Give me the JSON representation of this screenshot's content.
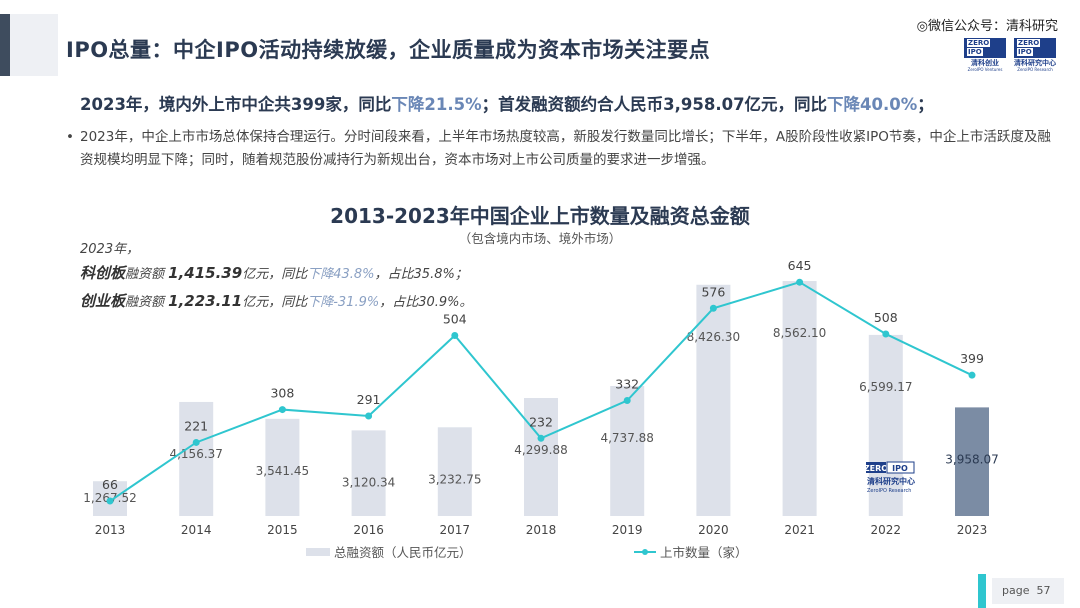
{
  "header": {
    "title": "IPO总量：中企IPO活动持续放缓，企业质量成为资本市场关注要点",
    "wechat": "微信公众号：清科研究",
    "logo1": {
      "top": "ZERO",
      "box": "IPO",
      "name": "清科创业",
      "en": "ZeroIPO Ventures"
    },
    "logo2": {
      "top": "ZERO",
      "box": "IPO",
      "name": "清科研究中心",
      "en": "ZeroIPO Research"
    }
  },
  "summary": {
    "part1": "2023年，境内外上市中企共399家，同比",
    "hl1": "下降21.5%",
    "part2": "；首发融资额约合人民币3,958.07亿元，同比",
    "hl2": "下降40.0%",
    "part3": "；"
  },
  "bullet": {
    "dot": "•",
    "text": "2023年，中企上市市场总体保持合理运行。分时间段来看，上半年市场热度较高，新股发行数量同比增长；下半年，A股阶段性收紧IPO节奏，中企上市活跃度及融资规模均明显下降；同时，随着规范股份减持行为新规出台，资本市场对上市公司质量的要求进一步增强。"
  },
  "notes": {
    "year": "2023年，",
    "kcb": {
      "name": "科创板",
      "label": "融资额 ",
      "amount": "1,415.39",
      "unit": "亿元",
      "yoy_prefix": "，同比",
      "yoy": "下降43.8%",
      "share": "，占比35.8%；"
    },
    "cyb": {
      "name": "创业板",
      "label": "融资额 ",
      "amount": "1,223.11",
      "unit": "亿元",
      "yoy_prefix": "，同比",
      "yoy": "下降-31.9%",
      "share": "，占比30.9%。"
    }
  },
  "watermark": {
    "top": "ZERO",
    "box": "IPO",
    "name": "清科研究中心",
    "en": "ZeroIPO Research"
  },
  "page": {
    "label": "page",
    "number": "57"
  },
  "colors": {
    "bar": "#dde1ea",
    "bar_highlight": "#7b8ca4",
    "line": "#2fc6cf",
    "title": "#2b3a52",
    "accent_text": "#6a87b6"
  },
  "chart_data": {
    "type": "bar",
    "title": "2013-2023年中国企业上市数量及融资总金额",
    "subtitle": "（包含境内市场、境外市场）",
    "categories": [
      "2013",
      "2014",
      "2015",
      "2016",
      "2017",
      "2018",
      "2019",
      "2020",
      "2021",
      "2022",
      "2023"
    ],
    "series": [
      {
        "name": "总融资额（人民币亿元）",
        "kind": "bar",
        "values": [
          1267.52,
          4156.37,
          3541.45,
          3120.34,
          3232.75,
          4299.88,
          4737.88,
          8426.3,
          8562.1,
          6599.17,
          3958.07
        ],
        "labels": [
          "1,267.52",
          "4,156.37",
          "3,541.45",
          "3,120.34",
          "3,232.75",
          "4,299.88",
          "4,737.88",
          "8,426.30",
          "8,562.10",
          "6,599.17",
          "3,958.07"
        ]
      },
      {
        "name": "上市数量（家）",
        "kind": "line",
        "values": [
          66,
          221,
          308,
          291,
          504,
          232,
          332,
          576,
          645,
          508,
          399
        ],
        "labels": [
          "66",
          "221",
          "308",
          "291",
          "504",
          "232",
          "332",
          "576",
          "645",
          "508",
          "399"
        ]
      }
    ],
    "highlight_index": 10,
    "ylim_bar": [
      0,
      8600
    ],
    "ylim_line": [
      0,
      700
    ],
    "legend_position": "bottom",
    "grid": false
  }
}
